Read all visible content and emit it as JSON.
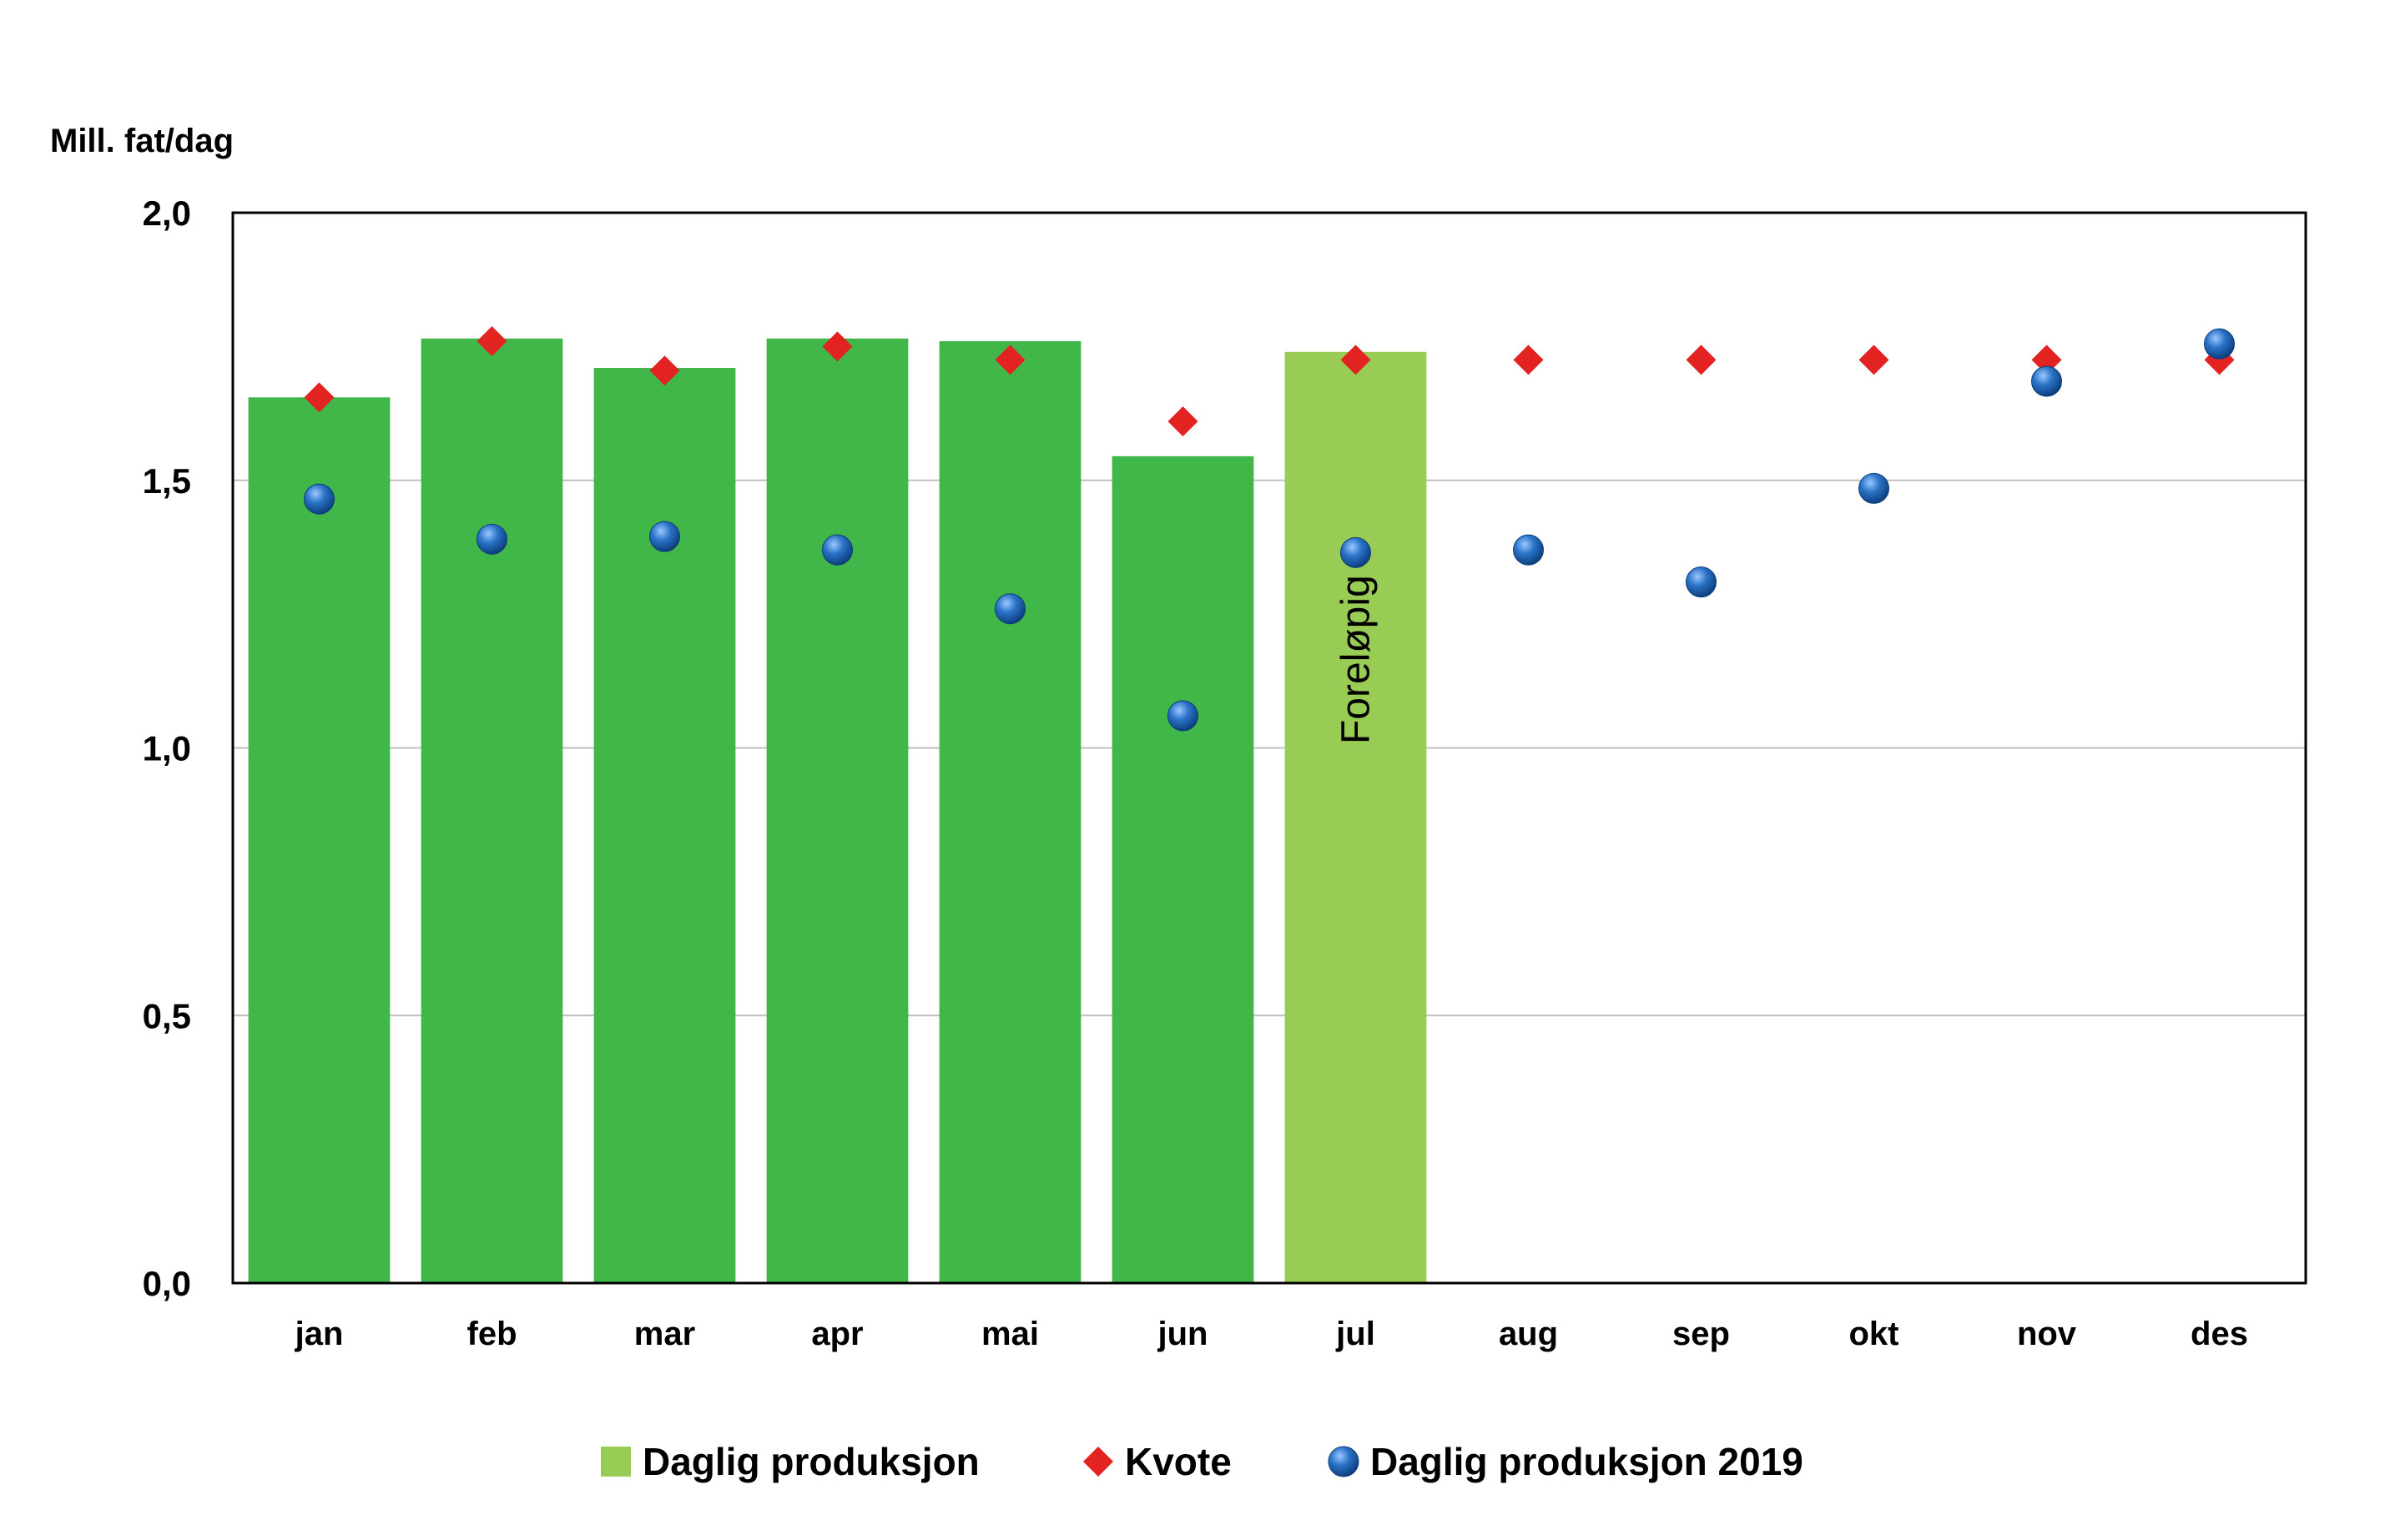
{
  "chart_data": {
    "type": "bar",
    "ylabel": "Mill. fat/dag",
    "ylim": [
      0,
      2.0
    ],
    "yticks": [
      "0,0",
      "0,5",
      "1,0",
      "1,5",
      "2,0"
    ],
    "ytick_values": [
      0,
      0.5,
      1.0,
      1.5,
      2.0
    ],
    "grid": true,
    "categories": [
      "jan",
      "feb",
      "mar",
      "apr",
      "mai",
      "jun",
      "jul",
      "aug",
      "sep",
      "okt",
      "nov",
      "des"
    ],
    "series": [
      {
        "name": "Daglig produksjon",
        "kind": "bar",
        "color": "#41b649",
        "values": [
          1.655,
          1.765,
          1.71,
          1.765,
          1.76,
          1.545,
          1.74,
          null,
          null,
          null,
          null,
          null
        ],
        "preliminary_color": "#99cc55",
        "preliminary_index": 6
      },
      {
        "name": "Kvote",
        "kind": "marker-diamond",
        "color": "#e32222",
        "values": [
          1.655,
          1.76,
          1.705,
          1.75,
          1.725,
          1.61,
          1.725,
          1.725,
          1.725,
          1.725,
          1.725,
          1.725
        ]
      },
      {
        "name": "Daglig produksjon 2019",
        "kind": "marker-circle",
        "color": "#1f5fa8",
        "values": [
          1.465,
          1.39,
          1.395,
          1.37,
          1.26,
          1.06,
          1.365,
          1.37,
          1.31,
          1.485,
          1.685,
          1.755
        ]
      }
    ],
    "annotations": [
      {
        "text": "Foreløpig",
        "category": "jul",
        "rotation": -90
      }
    ],
    "legend": {
      "placement": "bottom",
      "items": [
        "Daglig produksjon",
        "Kvote",
        "Daglig produksjon 2019"
      ]
    }
  }
}
